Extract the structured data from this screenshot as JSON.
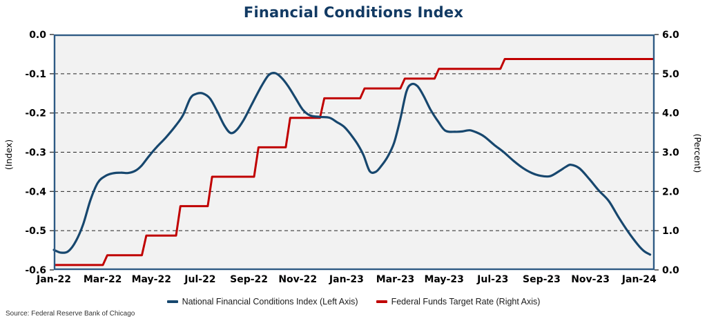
{
  "title": "Financial Conditions Index",
  "source": "Source: Federal Reserve Bank of Chicago",
  "colors": {
    "title": "#123A63",
    "nfci_line": "#17476E",
    "fed_funds_line": "#C00000",
    "plot_bg": "#F2F2F2",
    "plot_border": "#2E5A84",
    "gridline": "#222222",
    "axis_text": "#000000"
  },
  "legend": {
    "items": [
      {
        "label": "National Financial Conditions Index (Left Axis)",
        "color_key": "nfci_line"
      },
      {
        "label": "Federal Funds Target Rate (Right Axis)",
        "color_key": "fed_funds_line"
      }
    ]
  },
  "chart_data": {
    "type": "line",
    "title": "Financial Conditions Index",
    "grid": "horizontal-dashed",
    "legend_position": "bottom-center",
    "x_axis": {
      "unit": "months since Jan-2022",
      "range": [
        0,
        24.63
      ],
      "tick_positions": [
        0,
        2,
        4,
        6,
        8,
        10,
        12,
        14,
        16,
        18,
        20,
        22,
        24
      ],
      "tick_labels": [
        "Jan-22",
        "Mar-22",
        "May-22",
        "Jul-22",
        "Sep-22",
        "Nov-22",
        "Jan-23",
        "Mar-23",
        "May-23",
        "Jul-23",
        "Sep-23",
        "Nov-23",
        "Jan-24"
      ]
    },
    "left_axis": {
      "label": "(Index)",
      "range": [
        -0.6,
        0.0
      ],
      "tick_values": [
        0.0,
        -0.1,
        -0.2,
        -0.3,
        -0.4,
        -0.5,
        -0.6
      ],
      "tick_labels": [
        "0.0",
        "-0.1",
        "-0.2",
        "-0.3",
        "-0.4",
        "-0.5",
        "-0.6"
      ]
    },
    "right_axis": {
      "label": "(Percent)",
      "range": [
        0.0,
        6.0
      ],
      "tick_values": [
        6.0,
        5.0,
        4.0,
        3.0,
        2.0,
        1.0,
        0.0
      ],
      "tick_labels": [
        "6.0",
        "5.0",
        "4.0",
        "3.0",
        "2.0",
        "1.0",
        "0.0"
      ]
    },
    "series": [
      {
        "name": "National Financial Conditions Index (Left Axis)",
        "axis": "left",
        "style": "smooth",
        "color_key": "nfci_line",
        "x": [
          0.0,
          0.3,
          0.6,
          0.9,
          1.2,
          1.5,
          1.8,
          2.1,
          2.4,
          2.75,
          3.05,
          3.35,
          3.6,
          3.9,
          4.2,
          4.6,
          5.0,
          5.3,
          5.6,
          5.85,
          6.1,
          6.4,
          6.7,
          7.0,
          7.25,
          7.5,
          7.8,
          8.1,
          8.5,
          8.8,
          9.05,
          9.3,
          9.6,
          9.9,
          10.2,
          10.5,
          10.9,
          11.3,
          11.6,
          11.9,
          12.15,
          12.45,
          12.7,
          12.95,
          13.2,
          13.45,
          13.7,
          13.95,
          14.2,
          14.45,
          14.65,
          14.9,
          15.15,
          15.45,
          15.75,
          16.05,
          16.45,
          16.75,
          17.05,
          17.35,
          17.65,
          18.05,
          18.45,
          18.85,
          19.25,
          19.6,
          19.95,
          20.35,
          20.75,
          21.0,
          21.2,
          21.55,
          21.95,
          22.35,
          22.75,
          23.15,
          23.55,
          23.95,
          24.2,
          24.45
        ],
        "y": [
          -0.549,
          -0.556,
          -0.552,
          -0.527,
          -0.484,
          -0.422,
          -0.378,
          -0.361,
          -0.354,
          -0.352,
          -0.353,
          -0.347,
          -0.334,
          -0.31,
          -0.288,
          -0.262,
          -0.232,
          -0.205,
          -0.162,
          -0.151,
          -0.15,
          -0.163,
          -0.196,
          -0.233,
          -0.251,
          -0.243,
          -0.216,
          -0.18,
          -0.133,
          -0.104,
          -0.098,
          -0.108,
          -0.131,
          -0.161,
          -0.191,
          -0.206,
          -0.21,
          -0.212,
          -0.223,
          -0.235,
          -0.253,
          -0.279,
          -0.308,
          -0.348,
          -0.35,
          -0.333,
          -0.31,
          -0.276,
          -0.217,
          -0.147,
          -0.127,
          -0.131,
          -0.155,
          -0.192,
          -0.221,
          -0.245,
          -0.248,
          -0.247,
          -0.244,
          -0.25,
          -0.26,
          -0.281,
          -0.3,
          -0.322,
          -0.341,
          -0.353,
          -0.36,
          -0.361,
          -0.347,
          -0.337,
          -0.332,
          -0.341,
          -0.368,
          -0.398,
          -0.424,
          -0.465,
          -0.503,
          -0.536,
          -0.552,
          -0.561
        ]
      },
      {
        "name": "Federal Funds Target Rate (Right Axis)",
        "axis": "right",
        "style": "step",
        "color_key": "fed_funds_line",
        "start_rate": 0.125,
        "end_x": 24.63,
        "steps": [
          {
            "x": 2.1,
            "rate": 0.375
          },
          {
            "x": 3.7,
            "rate": 0.875
          },
          {
            "x": 5.1,
            "rate": 1.625
          },
          {
            "x": 6.4,
            "rate": 2.375
          },
          {
            "x": 8.3,
            "rate": 3.125
          },
          {
            "x": 9.6,
            "rate": 3.875
          },
          {
            "x": 11.0,
            "rate": 4.375
          },
          {
            "x": 12.65,
            "rate": 4.625
          },
          {
            "x": 14.3,
            "rate": 4.875
          },
          {
            "x": 15.7,
            "rate": 5.125
          },
          {
            "x": 18.4,
            "rate": 5.375
          }
        ]
      }
    ]
  }
}
